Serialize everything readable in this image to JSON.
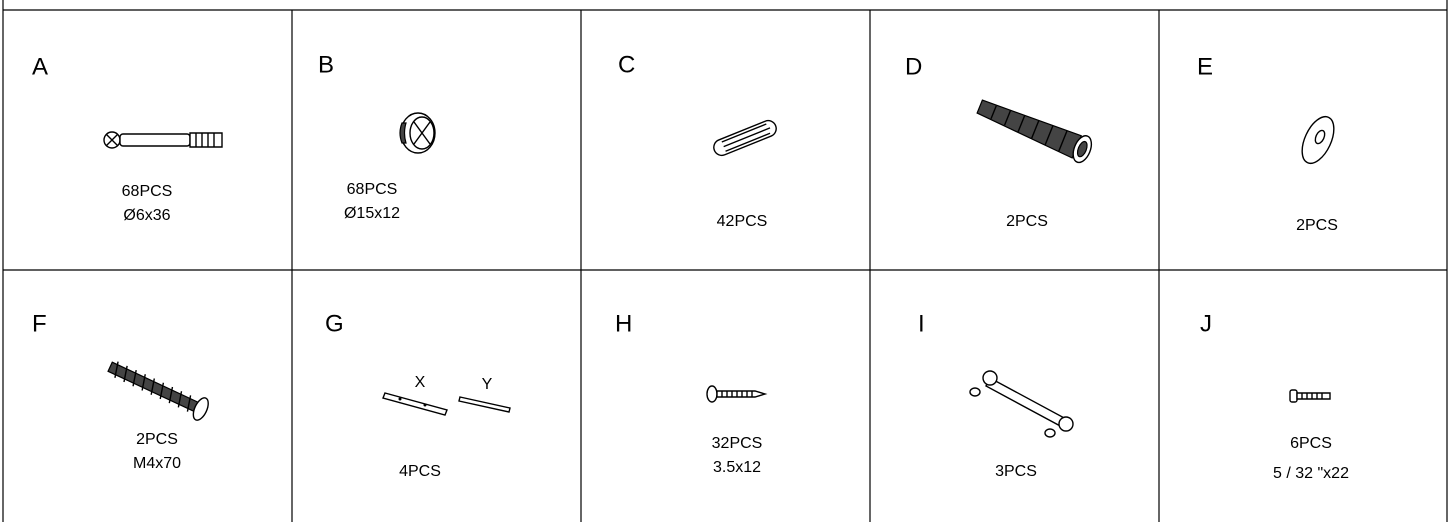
{
  "parts": [
    {
      "letter": "A",
      "quantity": "68PCS",
      "size": "Ø6x36"
    },
    {
      "letter": "B",
      "quantity": "68PCS",
      "size": "Ø15x12"
    },
    {
      "letter": "C",
      "quantity": "42PCS"
    },
    {
      "letter": "D",
      "quantity": "2PCS"
    },
    {
      "letter": "E",
      "quantity": "2PCS"
    },
    {
      "letter": "F",
      "quantity": "2PCS",
      "size": "M4x70"
    },
    {
      "letter": "G",
      "quantity": "4PCS",
      "callouts": [
        "X",
        "Y"
      ]
    },
    {
      "letter": "H",
      "quantity": "32PCS",
      "size": "3.5x12"
    },
    {
      "letter": "I",
      "quantity": "3PCS"
    },
    {
      "letter": "J",
      "quantity": "6PCS",
      "size": "5 / 32 \"x22"
    }
  ]
}
